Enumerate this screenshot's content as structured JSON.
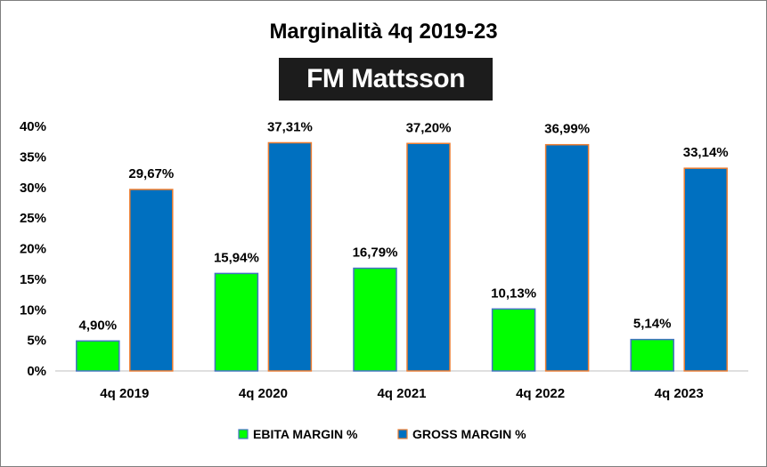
{
  "chart_data": {
    "type": "bar",
    "title": "Marginalità  4q 2019-23",
    "logo_text": "FM Mattsson",
    "categories": [
      "4q 2019",
      "4q 2020",
      "4q 2021",
      "4q 2022",
      "4q 2023"
    ],
    "series": [
      {
        "name": "EBITA MARGIN %",
        "values": [
          4.9,
          15.94,
          16.79,
          10.13,
          5.14
        ],
        "labels": [
          "4,90%",
          "15,94%",
          "16,79%",
          "10,13%",
          "5,14%"
        ],
        "color": "#00ff00",
        "border": "#4472c4"
      },
      {
        "name": "GROSS MARGIN %",
        "values": [
          29.67,
          37.31,
          37.2,
          36.99,
          33.14
        ],
        "labels": [
          "29,67%",
          "37,31%",
          "37,20%",
          "36,99%",
          "33,14%"
        ],
        "color": "#0070c0",
        "border": "#ed7d31"
      }
    ],
    "ylim": [
      0,
      40
    ],
    "yticks": [
      0,
      5,
      10,
      15,
      20,
      25,
      30,
      35,
      40
    ],
    "ytick_labels": [
      "0%",
      "5%",
      "10%",
      "15%",
      "20%",
      "25%",
      "30%",
      "35%",
      "40%"
    ],
    "grid": false,
    "legend": "bottom"
  }
}
